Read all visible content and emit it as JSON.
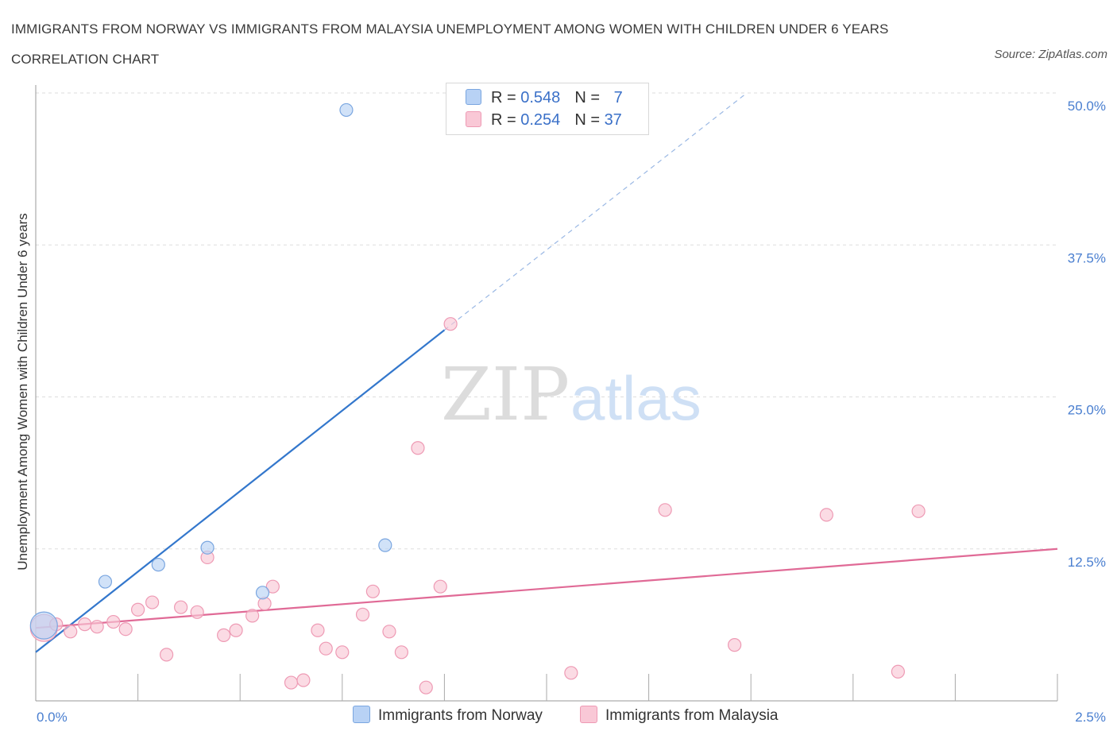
{
  "header": {
    "title": "IMMIGRANTS FROM NORWAY VS IMMIGRANTS FROM MALAYSIA UNEMPLOYMENT AMONG WOMEN WITH CHILDREN UNDER 6 YEARS CORRELATION CHART",
    "source": "Source: ZipAtlas.com"
  },
  "watermark": {
    "zip": "ZIP",
    "atlas": "atlas"
  },
  "legend": {
    "norway": {
      "r_label": "R = ",
      "r_value": "0.548",
      "n_label": "N = ",
      "n_value": "7"
    },
    "malaysia": {
      "r_label": "R = ",
      "r_value": "0.254",
      "n_label": "N = ",
      "n_value": "37"
    }
  },
  "bottom_legend": {
    "norway": "Immigrants from Norway",
    "malaysia": "Immigrants from Malaysia"
  },
  "colors": {
    "norway_fill": "#b8d2f5",
    "norway_stroke": "#7aa6e0",
    "norway_line": "#3377cc",
    "malaysia_fill": "#f9c8d6",
    "malaysia_stroke": "#ee9ab4",
    "malaysia_line": "#e06a96",
    "grid": "#dddddd",
    "tick_label": "#4a7fd0"
  },
  "chart_data": {
    "type": "scatter",
    "title": "IMMIGRANTS FROM NORWAY VS IMMIGRANTS FROM MALAYSIA UNEMPLOYMENT AMONG WOMEN WITH CHILDREN UNDER 6 YEARS CORRELATION CHART",
    "xlabel": "",
    "ylabel": "Unemployment Among Women with Children Under 6 years",
    "xlim": [
      0,
      2.5
    ],
    "ylim": [
      0,
      50
    ],
    "x_tick_labels": [
      "0.0%",
      "2.5%"
    ],
    "y_ticks": [
      12.5,
      25.0,
      37.5,
      50.0
    ],
    "y_tick_labels": [
      "12.5%",
      "25.0%",
      "37.5%",
      "50.0%"
    ],
    "grid": "horizontal dashed",
    "legend_position": "top-center",
    "series": [
      {
        "name": "Immigrants from Norway",
        "R": 0.548,
        "N": 7,
        "points": [
          {
            "x": 0.02,
            "y": 6.2,
            "size": "large"
          },
          {
            "x": 0.17,
            "y": 9.8
          },
          {
            "x": 0.3,
            "y": 11.2
          },
          {
            "x": 0.42,
            "y": 12.6
          },
          {
            "x": 0.555,
            "y": 8.9
          },
          {
            "x": 0.76,
            "y": 48.6
          },
          {
            "x": 0.855,
            "y": 12.8
          }
        ],
        "trend": {
          "x0": 0.0,
          "y0": 4.0,
          "x1": 1.0,
          "y1": 30.5,
          "dashed_to_x": 1.74,
          "dashed_to_y": 50.0
        }
      },
      {
        "name": "Immigrants from Malaysia",
        "R": 0.254,
        "N": 37,
        "points": [
          {
            "x": 0.02,
            "y": 6.0,
            "size": "large"
          },
          {
            "x": 0.05,
            "y": 6.3
          },
          {
            "x": 0.085,
            "y": 5.7
          },
          {
            "x": 0.12,
            "y": 6.3
          },
          {
            "x": 0.15,
            "y": 6.1
          },
          {
            "x": 0.19,
            "y": 6.5
          },
          {
            "x": 0.22,
            "y": 5.9
          },
          {
            "x": 0.25,
            "y": 7.5
          },
          {
            "x": 0.285,
            "y": 8.1
          },
          {
            "x": 0.32,
            "y": 3.8
          },
          {
            "x": 0.355,
            "y": 7.7
          },
          {
            "x": 0.395,
            "y": 7.3
          },
          {
            "x": 0.42,
            "y": 11.8
          },
          {
            "x": 0.46,
            "y": 5.4
          },
          {
            "x": 0.49,
            "y": 5.8
          },
          {
            "x": 0.53,
            "y": 7.0
          },
          {
            "x": 0.56,
            "y": 8.0
          },
          {
            "x": 0.58,
            "y": 9.4
          },
          {
            "x": 0.625,
            "y": 1.5
          },
          {
            "x": 0.655,
            "y": 1.7
          },
          {
            "x": 0.69,
            "y": 5.8
          },
          {
            "x": 0.71,
            "y": 4.3
          },
          {
            "x": 0.75,
            "y": 4.0
          },
          {
            "x": 0.8,
            "y": 7.1
          },
          {
            "x": 0.825,
            "y": 9.0
          },
          {
            "x": 0.865,
            "y": 5.7
          },
          {
            "x": 0.895,
            "y": 4.0
          },
          {
            "x": 0.935,
            "y": 20.8
          },
          {
            "x": 0.955,
            "y": 1.1
          },
          {
            "x": 0.99,
            "y": 9.4
          },
          {
            "x": 1.015,
            "y": 31.0
          },
          {
            "x": 1.31,
            "y": 2.3
          },
          {
            "x": 1.54,
            "y": 15.7
          },
          {
            "x": 1.71,
            "y": 4.6
          },
          {
            "x": 1.935,
            "y": 15.3
          },
          {
            "x": 2.11,
            "y": 2.4
          },
          {
            "x": 2.16,
            "y": 15.6
          }
        ],
        "trend": {
          "x0": 0.0,
          "y0": 6.0,
          "x1": 2.5,
          "y1": 12.5
        }
      }
    ]
  }
}
